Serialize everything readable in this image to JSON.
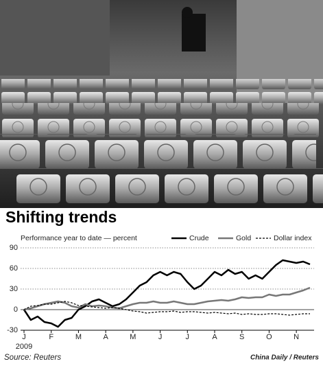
{
  "chart_data": {
    "type": "line",
    "title": "Shifting trends",
    "subtitle": "Performance year to date — percent",
    "year_label": "2009",
    "source": "Source: Reuters",
    "credit": "China Daily / Reuters",
    "categories": [
      "J",
      null,
      null,
      null,
      "F",
      null,
      null,
      null,
      "M",
      null,
      null,
      null,
      "A",
      null,
      null,
      null,
      "M",
      null,
      null,
      null,
      "J",
      null,
      null,
      null,
      "J",
      null,
      null,
      null,
      "A",
      null,
      null,
      null,
      "S",
      null,
      null,
      null,
      "O",
      null,
      null,
      null,
      "N",
      null,
      null
    ],
    "series": [
      {
        "name": "Crude",
        "color": "#000000",
        "style": "solid",
        "width": 2.5,
        "values": [
          0,
          -15,
          -10,
          -18,
          -20,
          -25,
          -15,
          -12,
          0,
          5,
          12,
          15,
          10,
          5,
          8,
          15,
          25,
          35,
          40,
          50,
          55,
          50,
          55,
          52,
          40,
          30,
          35,
          45,
          55,
          50,
          58,
          52,
          55,
          45,
          50,
          45,
          55,
          65,
          72,
          70,
          68,
          70,
          66
        ]
      },
      {
        "name": "Gold",
        "color": "#777777",
        "style": "solid",
        "width": 2.5,
        "values": [
          0,
          2,
          5,
          8,
          10,
          12,
          10,
          5,
          3,
          8,
          5,
          6,
          5,
          3,
          2,
          5,
          8,
          10,
          10,
          12,
          10,
          10,
          12,
          10,
          8,
          8,
          10,
          12,
          13,
          14,
          13,
          15,
          18,
          17,
          18,
          18,
          22,
          20,
          22,
          22,
          25,
          28,
          32
        ]
      },
      {
        "name": "Dollar index",
        "color": "#000000",
        "style": "dashed",
        "width": 1.2,
        "values": [
          0,
          5,
          6,
          8,
          8,
          10,
          12,
          10,
          6,
          5,
          4,
          3,
          2,
          3,
          2,
          0,
          -2,
          -3,
          -5,
          -4,
          -3,
          -3,
          -2,
          -4,
          -3,
          -3,
          -4,
          -5,
          -4,
          -5,
          -6,
          -5,
          -7,
          -6,
          -7,
          -7,
          -6,
          -6,
          -7,
          -8,
          -7,
          -6,
          -6
        ]
      }
    ],
    "ylim": [
      -30,
      90
    ],
    "yticks": [
      -30,
      0,
      30,
      60,
      90
    ],
    "grid": true
  }
}
